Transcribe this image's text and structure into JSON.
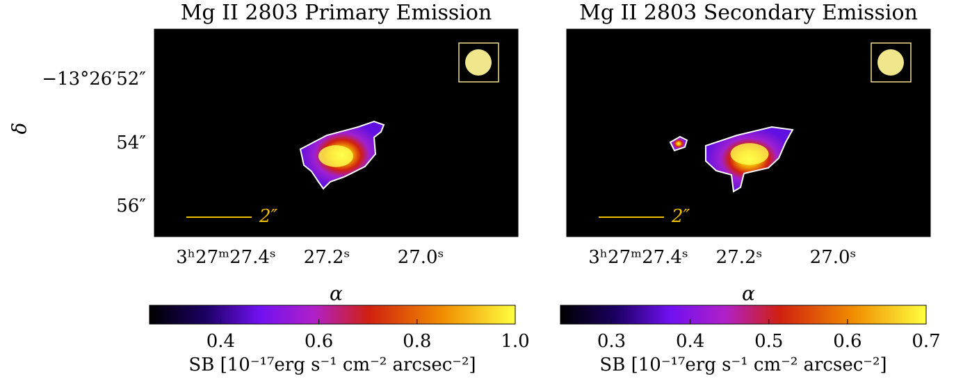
{
  "chart_data": [
    {
      "type": "image",
      "title": "Mg II 2803 Primary Emission",
      "xlabel": "α",
      "ylabel": "δ",
      "xticks": [
        "3ʰ27ᵐ27.4ˢ",
        "27.2ˢ",
        "27.0ˢ"
      ],
      "yticks": [
        "−13°26′52″",
        "54″",
        "56″"
      ],
      "scalebar": "2″",
      "colorbar": {
        "label": "SB [10⁻¹⁷erg s⁻¹ cm⁻² arcsec⁻²]",
        "lim": [
          0.255,
          1.0
        ],
        "ticks": [
          0.4,
          0.6,
          0.8,
          {
            "value": 1,
            "label": "1.0"
          }
        ]
      }
    },
    {
      "type": "image",
      "title": "Mg II 2803 Secondary Emission",
      "xlabel": "α",
      "xticks": [
        "3ʰ27ᵐ27.4ˢ",
        "27.2ˢ",
        "27.0ˢ"
      ],
      "scalebar": "2″",
      "colorbar": {
        "label": "SB [10⁻¹⁷erg s⁻¹ cm⁻² arcsec⁻²]",
        "lim": [
          0.235,
          0.7
        ],
        "ticks": [
          0.3,
          0.4,
          0.5,
          0.6,
          0.7
        ]
      }
    }
  ]
}
